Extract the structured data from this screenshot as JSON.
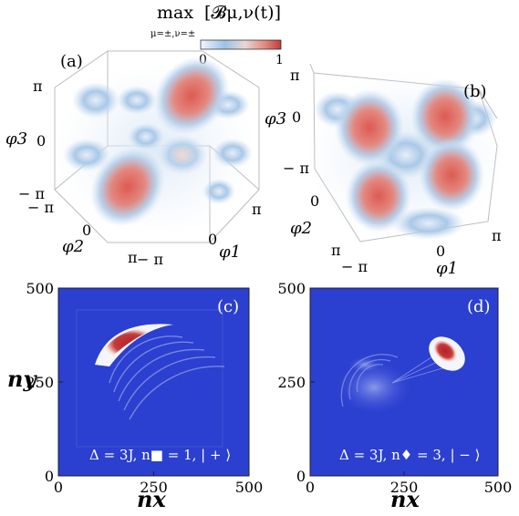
{
  "colorbar": {
    "title_max": "max",
    "title_sub": "μ=±,ν=±",
    "title_expr": "[𝓑μ,ν(t)]",
    "tick_min": "0",
    "tick_max": "1",
    "colors": [
      "#e8eefc",
      "#c7d8ef",
      "#8cb7e0",
      "#f0c8c2",
      "#e07a70",
      "#c43a3a"
    ]
  },
  "panel_a": {
    "label": "(a)",
    "y_axis_label": "φ3",
    "x2_axis_label": "φ2",
    "x1_axis_label": "φ1",
    "ticks_phi3": [
      "π",
      "0",
      "− π"
    ],
    "ticks_phi2": [
      "− π",
      "0",
      "π"
    ],
    "ticks_phi1": [
      "− π",
      "0",
      "π"
    ]
  },
  "panel_b": {
    "label": "(b)",
    "y_axis_label": "φ3",
    "x2_axis_label": "φ2",
    "x1_axis_label": "φ1",
    "ticks_phi3": [
      "π",
      "0",
      "− π"
    ],
    "ticks_phi2": [
      "π",
      "0"
    ],
    "ticks_phi1": [
      "− π",
      "0",
      "π"
    ]
  },
  "chart_data": [
    {
      "type": "heatmap",
      "panel": "(c)",
      "xlabel": "nx",
      "ylabel": "ny",
      "xlim": [
        0,
        500
      ],
      "ylim": [
        0,
        500
      ],
      "x_ticks": [
        "0",
        "250",
        "500"
      ],
      "y_ticks": [
        "0",
        "250",
        "500"
      ],
      "annotation": "Δ = 3J, n■ = 1, | + ⟩",
      "background_color": "#2b3fd0",
      "peak_region": {
        "center_x": 150,
        "center_y": 340,
        "value": 1
      }
    },
    {
      "type": "heatmap",
      "panel": "(d)",
      "xlabel": "nx",
      "xlim": [
        0,
        500
      ],
      "ylim": [
        0,
        500
      ],
      "x_ticks": [
        "0",
        "250",
        "500"
      ],
      "y_ticks": [
        "0",
        "250",
        "500"
      ],
      "annotation": "Δ = 3J, n♦ = 3, | − ⟩",
      "background_color": "#2b3fd0",
      "peak_region": {
        "center_x": 358,
        "center_y": 320,
        "value": 1
      }
    }
  ]
}
